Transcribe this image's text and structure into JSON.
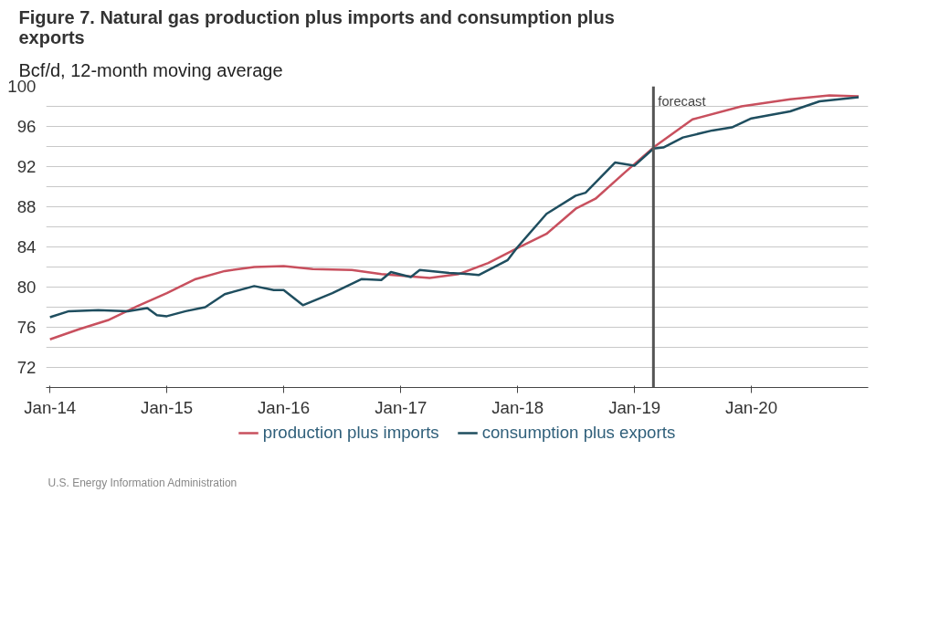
{
  "chart_data": {
    "type": "line",
    "title": "Figure 7. Natural gas production plus imports and consumption plus exports",
    "ylabel": "Bcf/d, 12-month moving average",
    "annotations": [
      "U.S. Energy Information Administration"
    ],
    "xlim": [
      "2013-12-20",
      "2020-12-31"
    ],
    "xticks": [
      {
        "value": "2014-01",
        "label": "Jan-14"
      },
      {
        "value": "2015-01",
        "label": "Jan-15"
      },
      {
        "value": "2016-01",
        "label": "Jan-16"
      },
      {
        "value": "2017-01",
        "label": "Jan-17"
      },
      {
        "value": "2018-01",
        "label": "Jan-18"
      },
      {
        "value": "2019-01",
        "label": "Jan-19"
      },
      {
        "value": "2020-01",
        "label": "Jan-20"
      }
    ],
    "ylim": [
      70,
      100
    ],
    "yticks": [
      72,
      {
        "value": 74,
        "label": null
      },
      76,
      {
        "value": 78,
        "label": null
      },
      80,
      {
        "value": 82,
        "label": null
      },
      84,
      {
        "value": 86,
        "label": null
      },
      88,
      {
        "value": 90,
        "label": null
      },
      92,
      {
        "value": 94,
        "label": null
      },
      96,
      {
        "value": 98,
        "label": null
      },
      100
    ],
    "grid": "y",
    "legend": "bottom",
    "line_style": "solid",
    "ref_lines": [
      {
        "axis": "x",
        "value": "2019-03",
        "label": "forecast",
        "color": "#555555"
      }
    ],
    "series": [
      {
        "name": "production plus imports",
        "color": "#c8505e",
        "x": [
          "2014-01",
          "2014-04",
          "2014-07",
          "2014-10",
          "2015-01",
          "2015-04",
          "2015-07",
          "2015-10",
          "2016-01",
          "2016-04",
          "2016-08",
          "2016-11",
          "2017-04",
          "2017-07",
          "2017-10",
          "2018-01",
          "2018-04",
          "2018-07",
          "2018-09",
          "2018-12",
          "2019-03",
          "2019-07",
          "2019-12",
          "2020-05",
          "2020-09",
          "2020-12"
        ],
        "values": [
          74.8,
          75.8,
          76.7,
          78.1,
          79.4,
          80.8,
          81.6,
          82.0,
          82.1,
          81.8,
          81.7,
          81.3,
          80.9,
          81.3,
          82.4,
          83.9,
          85.3,
          87.8,
          88.8,
          91.4,
          93.9,
          96.7,
          98.0,
          98.7,
          99.1,
          99.0
        ]
      },
      {
        "name": "consumption plus exports",
        "color": "#1f4e5f",
        "x": [
          "2014-01",
          "2014-03",
          "2014-06",
          "2014-09",
          "2014-11",
          "2014-12",
          "2015-01",
          "2015-03",
          "2015-05",
          "2015-07",
          "2015-10",
          "2015-12",
          "2016-01",
          "2016-03",
          "2016-06",
          "2016-09",
          "2016-11",
          "2016-12",
          "2017-02",
          "2017-03",
          "2017-06",
          "2017-08",
          "2017-09",
          "2017-12",
          "2018-01",
          "2018-04",
          "2018-07",
          "2018-08",
          "2018-11",
          "2019-01",
          "2019-03",
          "2019-04",
          "2019-06",
          "2019-09",
          "2019-11",
          "2020-01",
          "2020-05",
          "2020-08",
          "2020-12"
        ],
        "values": [
          77.0,
          77.6,
          77.7,
          77.6,
          77.9,
          77.2,
          77.1,
          77.6,
          78.0,
          79.3,
          80.1,
          79.7,
          79.7,
          78.2,
          79.4,
          80.8,
          80.7,
          81.5,
          81.0,
          81.7,
          81.4,
          81.3,
          81.2,
          82.7,
          84.0,
          87.3,
          89.1,
          89.4,
          92.4,
          92.1,
          93.8,
          93.9,
          94.9,
          95.6,
          95.9,
          96.8,
          97.5,
          98.5,
          98.9
        ]
      }
    ]
  }
}
